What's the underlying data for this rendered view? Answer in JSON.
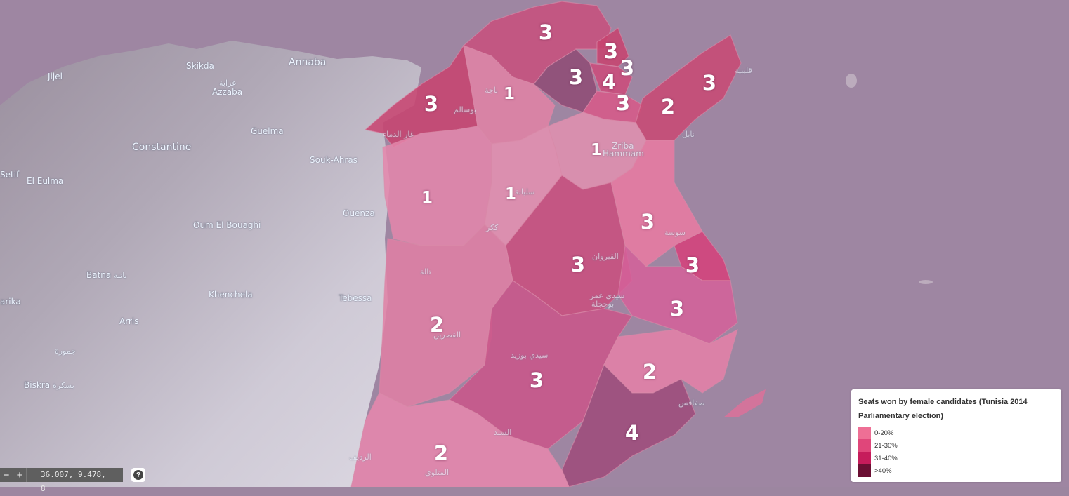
{
  "legend": {
    "title": "Seats won by female candidates (Tunisia 2014 Parliamentary election)",
    "items": [
      {
        "label": "0-20%",
        "color": "#ee6f95"
      },
      {
        "label": "21-30%",
        "color": "#e0467a"
      },
      {
        "label": "31-40%",
        "color": "#c61c5b"
      },
      {
        "label": ">40%",
        "color": "#6b0f33"
      }
    ]
  },
  "controls": {
    "zoom_out": "−",
    "zoom_in": "+",
    "coordinates": "36.007, 9.478, 8",
    "help": "?"
  },
  "cities": {
    "jijel": "Jijel",
    "skikda": "Skikda",
    "annaba": "Annaba",
    "azzaba_ar": "عزابة",
    "azzaba": "Azzaba",
    "guelma": "Guelma",
    "constantine": "Constantine",
    "souk_ahras": "Souk-Ahras",
    "setif": "Setif",
    "el_eulma": "El Eulma",
    "ouenza": "Ouenza",
    "oum_el_bouaghi": "Oum El Bouaghi",
    "batna": "Batna",
    "batna_ar": "باتنة",
    "khenchela": "Khenchela",
    "tebessa": "Tebessa",
    "barika": "arika",
    "arris": "Arris",
    "jemoura_ar": "جمورة",
    "biskra": "Biskra",
    "biskra_ar": "بسكرة",
    "zriba": "Zriba",
    "hammam": "Hammam",
    "beja_ar": "باجة",
    "bousalem_ar": "بوسالم",
    "ghardimaou_ar": "غار الدماء",
    "siliana_ar": "سليانة",
    "kef_ar": "ككر",
    "thala_ar": "تالة",
    "kasserine_ar": "القصرين",
    "kairouan_ar": "القيروان",
    "sidi_amor_ar": "سيدي عمر",
    "bouhajla_ar": "بوحجلة",
    "sousse_ar": "سوسة",
    "sidi_bouzid_ar": "سيدي بوزيد",
    "sened_ar": "السند",
    "sfax_ar": "صفاقس",
    "nabeul_ar": "نابل",
    "kelibia_ar": "قليبية",
    "redeyef_ar": "الرديف",
    "metlaoui_ar": "المتلوي"
  },
  "seats": {
    "bizerte": "3",
    "jendouba": "3",
    "beja": "1",
    "manouba": "3",
    "ariana": "3",
    "tunis1": "4",
    "tunis2": "3",
    "ben_arous": "3",
    "nabeul1": "2",
    "nabeul2": "3",
    "zaghouan": "1",
    "kef": "1",
    "siliana": "1",
    "sousse": "3",
    "kairouan": "3",
    "monastir": "3",
    "mahdia": "3",
    "kasserine": "2",
    "sidi_bouzid": "3",
    "sfax1": "2",
    "sfax2": "4",
    "gafsa": "2"
  }
}
